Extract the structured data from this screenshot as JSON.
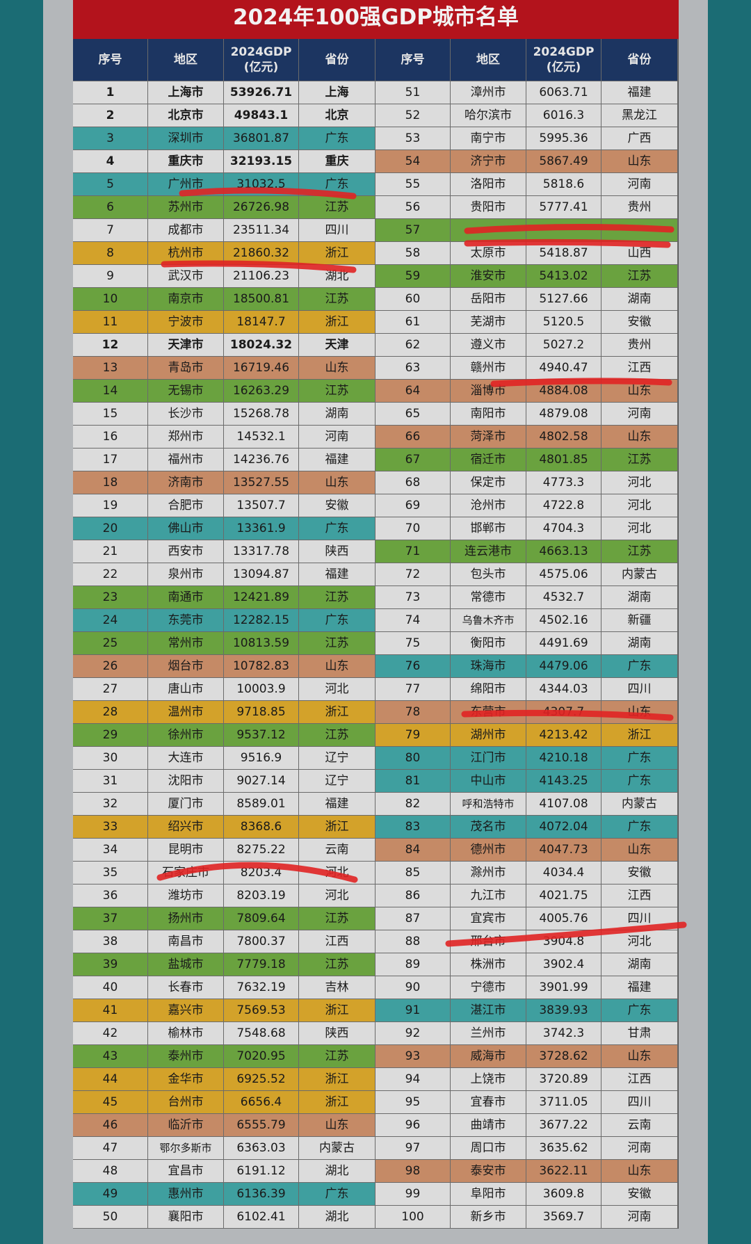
{
  "title": "2024年100强GDP城市名单",
  "table": {
    "header": [
      "序号",
      "地区",
      [
        "2024GDP",
        "(亿元)"
      ],
      "省份"
    ],
    "province_colors": {
      "广东": "#3f9f9f",
      "江苏": "#6aa23f",
      "浙江": "#d3a22a",
      "山东": "#c58a66"
    },
    "bold_provinces": [
      "上海",
      "北京",
      "重庆",
      "天津"
    ],
    "rows": [
      [
        1,
        "上海市",
        53926.71,
        "上海"
      ],
      [
        2,
        "北京市",
        49843.1,
        "北京"
      ],
      [
        3,
        "深圳市",
        36801.87,
        "广东"
      ],
      [
        4,
        "重庆市",
        32193.15,
        "重庆"
      ],
      [
        5,
        "广州市",
        31032.5,
        "广东"
      ],
      [
        6,
        "苏州市",
        26726.98,
        "江苏"
      ],
      [
        7,
        "成都市",
        23511.34,
        "四川"
      ],
      [
        8,
        "杭州市",
        21860.32,
        "浙江"
      ],
      [
        9,
        "武汉市",
        21106.23,
        "湖北"
      ],
      [
        10,
        "南京市",
        18500.81,
        "江苏"
      ],
      [
        11,
        "宁波市",
        18147.7,
        "浙江"
      ],
      [
        12,
        "天津市",
        18024.32,
        "天津"
      ],
      [
        13,
        "青岛市",
        16719.46,
        "山东"
      ],
      [
        14,
        "无锡市",
        16263.29,
        "江苏"
      ],
      [
        15,
        "长沙市",
        15268.78,
        "湖南"
      ],
      [
        16,
        "郑州市",
        14532.1,
        "河南"
      ],
      [
        17,
        "福州市",
        14236.76,
        "福建"
      ],
      [
        18,
        "济南市",
        13527.55,
        "山东"
      ],
      [
        19,
        "合肥市",
        13507.7,
        "安徽"
      ],
      [
        20,
        "佛山市",
        13361.9,
        "广东"
      ],
      [
        21,
        "西安市",
        13317.78,
        "陕西"
      ],
      [
        22,
        "泉州市",
        13094.87,
        "福建"
      ],
      [
        23,
        "南通市",
        12421.89,
        "江苏"
      ],
      [
        24,
        "东莞市",
        12282.15,
        "广东"
      ],
      [
        25,
        "常州市",
        10813.59,
        "江苏"
      ],
      [
        26,
        "烟台市",
        10782.83,
        "山东"
      ],
      [
        27,
        "唐山市",
        10003.9,
        "河北"
      ],
      [
        28,
        "温州市",
        9718.85,
        "浙江"
      ],
      [
        29,
        "徐州市",
        9537.12,
        "江苏"
      ],
      [
        30,
        "大连市",
        9516.9,
        "辽宁"
      ],
      [
        31,
        "沈阳市",
        9027.14,
        "辽宁"
      ],
      [
        32,
        "厦门市",
        8589.01,
        "福建"
      ],
      [
        33,
        "绍兴市",
        8368.6,
        "浙江"
      ],
      [
        34,
        "昆明市",
        8275.22,
        "云南"
      ],
      [
        35,
        "石家庄市",
        8203.4,
        "河北"
      ],
      [
        36,
        "潍坊市",
        8203.19,
        "河北"
      ],
      [
        37,
        "扬州市",
        7809.64,
        "江苏"
      ],
      [
        38,
        "南昌市",
        7800.37,
        "江西"
      ],
      [
        39,
        "盐城市",
        7779.18,
        "江苏"
      ],
      [
        40,
        "长春市",
        7632.19,
        "吉林"
      ],
      [
        41,
        "嘉兴市",
        7569.53,
        "浙江"
      ],
      [
        42,
        "榆林市",
        7548.68,
        "陕西"
      ],
      [
        43,
        "泰州市",
        7020.95,
        "江苏"
      ],
      [
        44,
        "金华市",
        6925.52,
        "浙江"
      ],
      [
        45,
        "台州市",
        6656.4,
        "浙江"
      ],
      [
        46,
        "临沂市",
        6555.79,
        "山东"
      ],
      [
        47,
        "鄂尔多斯市",
        6363.03,
        "内蒙古"
      ],
      [
        48,
        "宜昌市",
        6191.12,
        "湖北"
      ],
      [
        49,
        "惠州市",
        6136.39,
        "广东"
      ],
      [
        50,
        "襄阳市",
        6102.41,
        "湖北"
      ],
      [
        51,
        "漳州市",
        6063.71,
        "福建"
      ],
      [
        52,
        "哈尔滨市",
        6016.3,
        "黑龙江"
      ],
      [
        53,
        "南宁市",
        5995.36,
        "广西"
      ],
      [
        54,
        "济宁市",
        5867.49,
        "山东"
      ],
      [
        55,
        "洛阳市",
        5818.6,
        "河南"
      ],
      [
        56,
        "贵阳市",
        5777.41,
        "贵州"
      ],
      [
        57,
        null,
        null,
        null,
        "#6aa23f"
      ],
      [
        58,
        "太原市",
        5418.87,
        "山西"
      ],
      [
        59,
        "淮安市",
        5413.02,
        "江苏"
      ],
      [
        60,
        "岳阳市",
        5127.66,
        "湖南"
      ],
      [
        61,
        "芜湖市",
        5120.5,
        "安徽"
      ],
      [
        62,
        "遵义市",
        5027.2,
        "贵州"
      ],
      [
        63,
        "赣州市",
        4940.47,
        "江西"
      ],
      [
        64,
        "淄博市",
        4884.08,
        "山东"
      ],
      [
        65,
        "南阳市",
        4879.08,
        "河南"
      ],
      [
        66,
        "菏泽市",
        4802.58,
        "山东"
      ],
      [
        67,
        "宿迁市",
        4801.85,
        "江苏"
      ],
      [
        68,
        "保定市",
        4773.3,
        "河北"
      ],
      [
        69,
        "沧州市",
        4722.8,
        "河北"
      ],
      [
        70,
        "邯郸市",
        4704.3,
        "河北"
      ],
      [
        71,
        "连云港市",
        4663.13,
        "江苏"
      ],
      [
        72,
        "包头市",
        4575.06,
        "内蒙古"
      ],
      [
        73,
        "常德市",
        4532.7,
        "湖南"
      ],
      [
        74,
        "乌鲁木齐市",
        4502.16,
        "新疆"
      ],
      [
        75,
        "衡阳市",
        4491.69,
        "湖南"
      ],
      [
        76,
        "珠海市",
        4479.06,
        "广东"
      ],
      [
        77,
        "绵阳市",
        4344.03,
        "四川"
      ],
      [
        78,
        "东营市",
        4307.7,
        "山东"
      ],
      [
        79,
        "湖州市",
        4213.42,
        "浙江"
      ],
      [
        80,
        "江门市",
        4210.18,
        "广东"
      ],
      [
        81,
        "中山市",
        4143.25,
        "广东"
      ],
      [
        82,
        "呼和浩特市",
        4107.08,
        "内蒙古"
      ],
      [
        83,
        "茂名市",
        4072.04,
        "广东"
      ],
      [
        84,
        "德州市",
        4047.73,
        "山东"
      ],
      [
        85,
        "滁州市",
        4034.4,
        "安徽"
      ],
      [
        86,
        "九江市",
        4021.75,
        "江西"
      ],
      [
        87,
        "宜宾市",
        4005.76,
        "四川"
      ],
      [
        88,
        "邢台市",
        3904.8,
        "河北"
      ],
      [
        89,
        "株洲市",
        3902.4,
        "湖南"
      ],
      [
        90,
        "宁德市",
        3901.99,
        "福建"
      ],
      [
        91,
        "湛江市",
        3839.93,
        "广东"
      ],
      [
        92,
        "兰州市",
        3742.3,
        "甘肃"
      ],
      [
        93,
        "威海市",
        3728.62,
        "山东"
      ],
      [
        94,
        "上饶市",
        3720.89,
        "江西"
      ],
      [
        95,
        "宜春市",
        3711.05,
        "四川"
      ],
      [
        96,
        "曲靖市",
        3677.22,
        "云南"
      ],
      [
        97,
        "周口市",
        3635.62,
        "河南"
      ],
      [
        98,
        "泰安市",
        3622.11,
        "山东"
      ],
      [
        99,
        "阜阳市",
        3609.8,
        "安徽"
      ],
      [
        100,
        "新乡市",
        3569.7,
        "河南"
      ]
    ]
  }
}
